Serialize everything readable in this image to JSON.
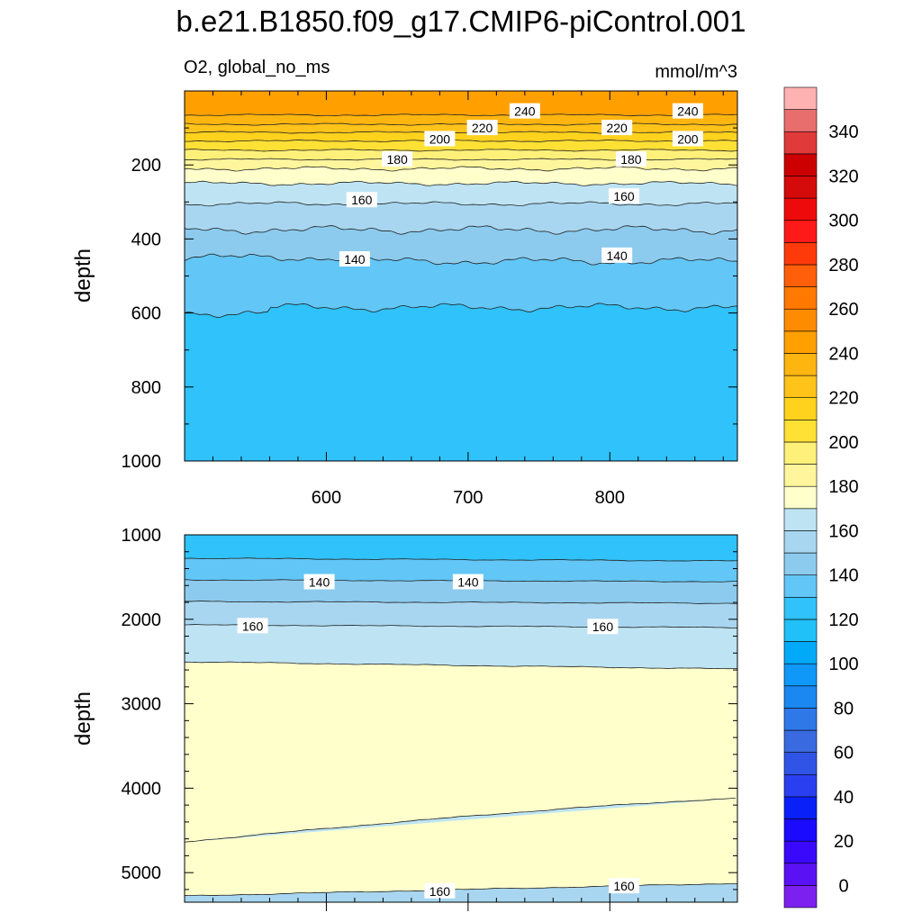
{
  "title": "b.e21.B1850.f09_g17.CMIP6-piControl.001",
  "chart_data": [
    {
      "type": "contour",
      "panel": "upper",
      "left_label": "O2, global_no_ms",
      "right_label": "mmol/m^3",
      "xlabel": "",
      "ylabel": "depth",
      "xlim": [
        500,
        890
      ],
      "ylim": [
        1000,
        0
      ],
      "xticks": [
        600,
        700,
        800
      ],
      "yticks": [
        200,
        400,
        600,
        800,
        1000
      ],
      "contour_levels": [
        {
          "depth": 65,
          "value": 240
        },
        {
          "depth": 90,
          "value": 230
        },
        {
          "depth": 112,
          "value": 220
        },
        {
          "depth": 135,
          "value": 210
        },
        {
          "depth": 160,
          "value": 200
        },
        {
          "depth": 185,
          "value": 190
        },
        {
          "depth": 210,
          "value": 180
        },
        {
          "depth": 250,
          "value": 170
        },
        {
          "depth": 305,
          "value": 160
        },
        {
          "depth": 375,
          "value": 150
        },
        {
          "depth": 460,
          "value": 140
        },
        {
          "depth": 590,
          "value": 130
        }
      ],
      "contour_labels": [
        {
          "text": "240",
          "x": 740,
          "depth": 55
        },
        {
          "text": "240",
          "x": 855,
          "depth": 55
        },
        {
          "text": "220",
          "x": 710,
          "depth": 100
        },
        {
          "text": "220",
          "x": 805,
          "depth": 100
        },
        {
          "text": "200",
          "x": 680,
          "depth": 130
        },
        {
          "text": "200",
          "x": 855,
          "depth": 130
        },
        {
          "text": "180",
          "x": 650,
          "depth": 185
        },
        {
          "text": "180",
          "x": 815,
          "depth": 185
        },
        {
          "text": "160",
          "x": 625,
          "depth": 295
        },
        {
          "text": "160",
          "x": 810,
          "depth": 285
        },
        {
          "text": "140",
          "x": 620,
          "depth": 455
        },
        {
          "text": "140",
          "x": 805,
          "depth": 445
        }
      ]
    },
    {
      "type": "contour",
      "panel": "lower",
      "xlabel": "",
      "ylabel": "depth",
      "xlim": [
        500,
        890
      ],
      "ylim": [
        5350,
        1000
      ],
      "xticks": [
        600,
        700,
        800
      ],
      "yticks": [
        1000,
        2000,
        3000,
        4000,
        5000
      ],
      "contour_labels": [
        {
          "text": "140",
          "x": 595,
          "depth": 1560
        },
        {
          "text": "140",
          "x": 700,
          "depth": 1560
        },
        {
          "text": "160",
          "x": 548,
          "depth": 2080
        },
        {
          "text": "160",
          "x": 795,
          "depth": 2090
        },
        {
          "text": "160",
          "x": 680,
          "depth": 5220
        },
        {
          "text": "160",
          "x": 810,
          "depth": 5160
        }
      ]
    },
    {
      "type": "colorbar",
      "levels": [
        0,
        10,
        20,
        30,
        40,
        50,
        60,
        70,
        80,
        90,
        100,
        110,
        120,
        130,
        140,
        150,
        160,
        170,
        180,
        190,
        200,
        210,
        220,
        230,
        240,
        250,
        260,
        270,
        280,
        290,
        300,
        310,
        320,
        330,
        340,
        350
      ],
      "labels": [
        "0",
        "20",
        "40",
        "60",
        "80",
        "100",
        "120",
        "140",
        "160",
        "180",
        "200",
        "220",
        "240",
        "260",
        "280",
        "300",
        "320",
        "340"
      ],
      "colors": [
        "#7c20f0",
        "#5a12f5",
        "#3a08fa",
        "#1a0afe",
        "#0a20f8",
        "#2a40f0",
        "#3055e6",
        "#3a6ae0",
        "#2f78e8",
        "#1a88f0",
        "#0f98f8",
        "#00aaf8",
        "#20c0f8",
        "#30c2fa",
        "#62c6f6",
        "#8ccbee",
        "#a8d6f0",
        "#bee4f4",
        "#ffffcc",
        "#fff59c",
        "#fff07a",
        "#ffe035",
        "#ffd21e",
        "#ffc31a",
        "#ffb50f",
        "#ffa000",
        "#ff8c00",
        "#ff7800",
        "#ff5e0a",
        "#ff3a0a",
        "#ff1a1a",
        "#ee0a0a",
        "#d50a0a",
        "#cc0000",
        "#e03a3a",
        "#e86e6e",
        "#ffb2b2"
      ]
    }
  ]
}
